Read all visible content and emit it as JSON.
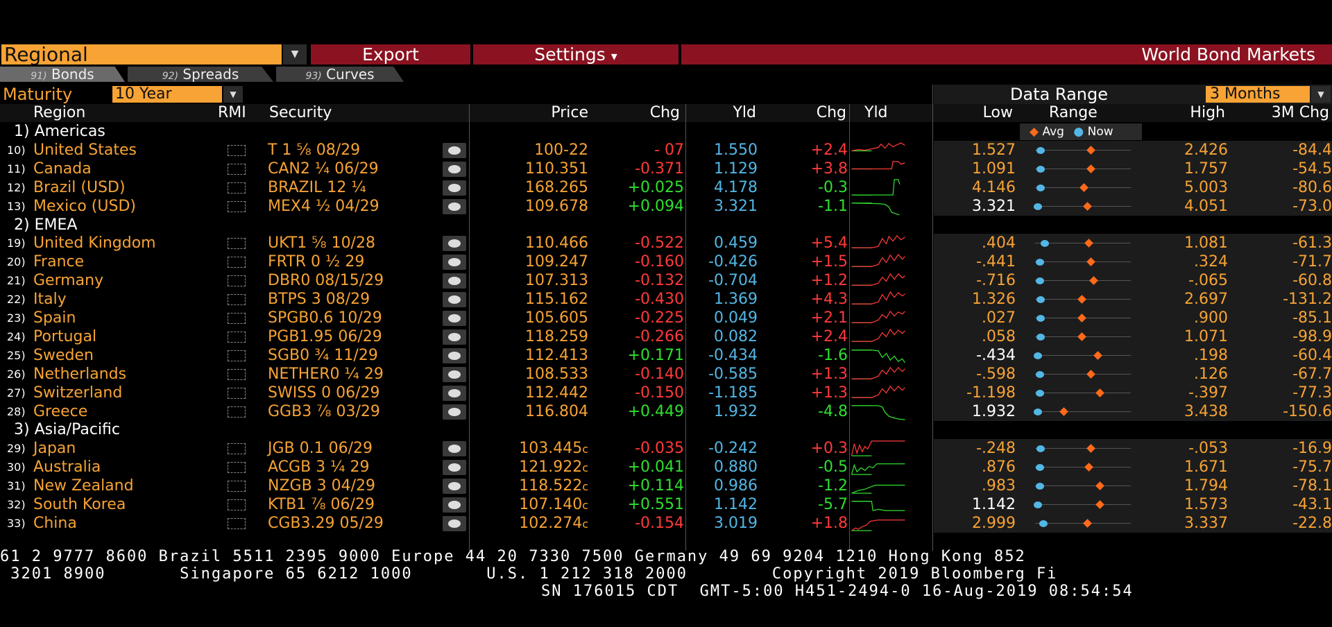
{
  "toolbar": {
    "regional_label": "Regional",
    "export_label": "Export",
    "settings_label": "Settings",
    "settings_caret": "▾",
    "title": "World Bond Markets"
  },
  "tabs": [
    {
      "num": "91)",
      "label": "Bonds"
    },
    {
      "num": "92)",
      "label": "Spreads"
    },
    {
      "num": "93)",
      "label": "Curves"
    }
  ],
  "filter": {
    "maturity_label": "Maturity",
    "maturity_value": "10 Year",
    "data_range_label": "Data Range",
    "data_range_value": "3 Months"
  },
  "columns": {
    "region": "Region",
    "rmi": "RMI",
    "security": "Security",
    "price": "Price",
    "chg": "Chg",
    "yld": "Yld",
    "chg2": "Chg",
    "yld_chart": "Yld",
    "low": "Low",
    "range": "Range",
    "high": "High",
    "chg3m": "3M Chg"
  },
  "legend": {
    "avg": "Avg",
    "now": "Now"
  },
  "groups": [
    {
      "label": "1) Americas"
    },
    {
      "label": "2) EMEA"
    },
    {
      "label": "3) Asia/Pacific"
    }
  ],
  "rows": [
    {
      "num": "10)",
      "region": "United States",
      "security": "T 1 ⅝ 08/29",
      "price": "100-22",
      "chg": "- 07",
      "chg_dir": "down",
      "yld": "1.550",
      "ychg": "+2.4",
      "ychg_dir": "up",
      "low": "1.527",
      "range_now": 0.03,
      "range_avg": 0.6,
      "high": "2.426",
      "chg3m": "-84.4"
    },
    {
      "num": "11)",
      "region": "Canada",
      "security": "CAN2 ¼ 06/29",
      "price": "110.351",
      "chg": "-0.371",
      "chg_dir": "down",
      "yld": "1.129",
      "ychg": "+3.8",
      "ychg_dir": "up",
      "low": "1.091",
      "range_now": 0.03,
      "range_avg": 0.6,
      "high": "1.757",
      "chg3m": "-54.5"
    },
    {
      "num": "12)",
      "region": "Brazil (USD)",
      "security": "BRAZIL 12 ¼",
      "price": "168.265",
      "chg": "+0.025",
      "chg_dir": "up",
      "yld": "4.178",
      "ychg": "-0.3",
      "ychg_dir": "down",
      "low": "4.146",
      "range_now": 0.03,
      "range_avg": 0.52,
      "high": "5.003",
      "chg3m": "-80.6"
    },
    {
      "num": "13)",
      "region": "Mexico (USD)",
      "security": "MEX4 ½ 04/29",
      "price": "109.678",
      "chg": "+0.094",
      "chg_dir": "up",
      "yld": "3.321",
      "ychg": "-1.1",
      "ychg_dir": "down",
      "low": "3.321",
      "range_now": 0.0,
      "range_avg": 0.56,
      "high": "4.051",
      "chg3m": "-73.0"
    },
    {
      "num": "19)",
      "region": "United Kingdom",
      "security": "UKT1 ⅝ 10/28",
      "price": "110.466",
      "chg": "-0.522",
      "chg_dir": "down",
      "yld": "0.459",
      "ychg": "+5.4",
      "ychg_dir": "up",
      "low": ".404",
      "range_now": 0.08,
      "range_avg": 0.58,
      "high": "1.081",
      "chg3m": "-61.3"
    },
    {
      "num": "20)",
      "region": "France",
      "security": "FRTR 0 ½ 29",
      "price": "109.247",
      "chg": "-0.160",
      "chg_dir": "down",
      "yld": "-0.426",
      "ychg": "+1.5",
      "ychg_dir": "up",
      "low": "-.441",
      "range_now": 0.02,
      "range_avg": 0.6,
      "high": ".324",
      "chg3m": "-71.7"
    },
    {
      "num": "21)",
      "region": "Germany",
      "security": "DBR0 08/15/29",
      "price": "107.313",
      "chg": "-0.132",
      "chg_dir": "down",
      "yld": "-0.704",
      "ychg": "+1.2",
      "ychg_dir": "up",
      "low": "-.716",
      "range_now": 0.02,
      "range_avg": 0.63,
      "high": "-.065",
      "chg3m": "-60.8"
    },
    {
      "num": "22)",
      "region": "Italy",
      "security": "BTPS 3 08/29",
      "price": "115.162",
      "chg": "-0.430",
      "chg_dir": "down",
      "yld": "1.369",
      "ychg": "+4.3",
      "ychg_dir": "up",
      "low": "1.326",
      "range_now": 0.03,
      "range_avg": 0.5,
      "high": "2.697",
      "chg3m": "-131.2"
    },
    {
      "num": "23)",
      "region": "Spain",
      "security": "SPGB0.6 10/29",
      "price": "105.605",
      "chg": "-0.225",
      "chg_dir": "down",
      "yld": "0.049",
      "ychg": "+2.1",
      "ychg_dir": "up",
      "low": ".027",
      "range_now": 0.03,
      "range_avg": 0.5,
      "high": ".900",
      "chg3m": "-85.1"
    },
    {
      "num": "24)",
      "region": "Portugal",
      "security": "PGB1.95 06/29",
      "price": "118.259",
      "chg": "-0.266",
      "chg_dir": "down",
      "yld": "0.082",
      "ychg": "+2.4",
      "ychg_dir": "up",
      "low": ".058",
      "range_now": 0.03,
      "range_avg": 0.5,
      "high": "1.071",
      "chg3m": "-98.9"
    },
    {
      "num": "25)",
      "region": "Sweden",
      "security": "SGB0 ¾ 11/29",
      "price": "112.413",
      "chg": "+0.171",
      "chg_dir": "up",
      "yld": "-0.434",
      "ychg": "-1.6",
      "ychg_dir": "down",
      "low": "-.434",
      "range_now": 0.0,
      "range_avg": 0.68,
      "high": ".198",
      "chg3m": "-60.4"
    },
    {
      "num": "26)",
      "region": "Netherlands",
      "security": "NETHER0 ¼ 29",
      "price": "108.533",
      "chg": "-0.140",
      "chg_dir": "down",
      "yld": "-0.585",
      "ychg": "+1.3",
      "ychg_dir": "up",
      "low": "-.598",
      "range_now": 0.02,
      "range_avg": 0.6,
      "high": ".126",
      "chg3m": "-67.7"
    },
    {
      "num": "27)",
      "region": "Switzerland",
      "security": "SWISS 0 06/29",
      "price": "112.442",
      "chg": "-0.150",
      "chg_dir": "down",
      "yld": "-1.185",
      "ychg": "+1.3",
      "ychg_dir": "up",
      "low": "-1.198",
      "range_now": 0.02,
      "range_avg": 0.7,
      "high": "-.397",
      "chg3m": "-77.3"
    },
    {
      "num": "28)",
      "region": "Greece",
      "security": "GGB3 ⅞ 03/29",
      "price": "116.804",
      "chg": "+0.449",
      "chg_dir": "up",
      "yld": "1.932",
      "ychg": "-4.8",
      "ychg_dir": "down",
      "low": "1.932",
      "range_now": 0.0,
      "range_avg": 0.3,
      "high": "3.438",
      "chg3m": "-150.6"
    },
    {
      "num": "29)",
      "region": "Japan",
      "security": "JGB 0.1 06/29",
      "price": "103.445",
      "chg": "-0.035",
      "chg_dir": "down",
      "yld": "-0.242",
      "ychg": "+0.3",
      "ychg_dir": "up",
      "low": "-.248",
      "range_now": 0.03,
      "range_avg": 0.6,
      "high": "-.053",
      "chg3m": "-16.9"
    },
    {
      "num": "30)",
      "region": "Australia",
      "security": "ACGB 3 ¼ 29",
      "price": "121.922",
      "chg": "+0.041",
      "chg_dir": "up",
      "yld": "0.880",
      "ychg": "-0.5",
      "ychg_dir": "down",
      "low": ".876",
      "range_now": 0.02,
      "range_avg": 0.58,
      "high": "1.671",
      "chg3m": "-75.7"
    },
    {
      "num": "31)",
      "region": "New Zealand",
      "security": "NZGB 3 04/29",
      "price": "118.522",
      "chg": "+0.114",
      "chg_dir": "up",
      "yld": "0.986",
      "ychg": "-1.2",
      "ychg_dir": "down",
      "low": ".983",
      "range_now": 0.02,
      "range_avg": 0.7,
      "high": "1.794",
      "chg3m": "-78.1"
    },
    {
      "num": "32)",
      "region": "South Korea",
      "security": "KTB1 ⅞ 06/29",
      "price": "107.140",
      "chg": "+0.551",
      "chg_dir": "up",
      "yld": "1.142",
      "ychg": "-5.7",
      "ychg_dir": "down",
      "low": "1.142",
      "range_now": 0.0,
      "range_avg": 0.7,
      "high": "1.573",
      "chg3m": "-43.1"
    },
    {
      "num": "33)",
      "region": "China",
      "security": "CGB3.29 05/29",
      "price": "102.274",
      "chg": "-0.154",
      "chg_dir": "down",
      "yld": "3.019",
      "ychg": "+1.8",
      "ychg_dir": "up",
      "low": "2.999",
      "range_now": 0.06,
      "range_avg": 0.56,
      "high": "3.337",
      "chg3m": "-22.8"
    }
  ],
  "closing_marker": "c",
  "ticker": {
    "line1": "61 2 9777 8600 Brazil 5511 2395 9000 Europe 44 20 7330 7500 Germany 49 69 9204 1210 Hong Kong 852",
    "line2": " 3201 8900       Singapore 65 6212 1000       U.S. 1 212 318 2000        Copyright 2019 Bloomberg Fi",
    "line3": "SN 176015 CDT  GMT-5:00 H451-2494-0 16-Aug-2019 08:54:54"
  }
}
